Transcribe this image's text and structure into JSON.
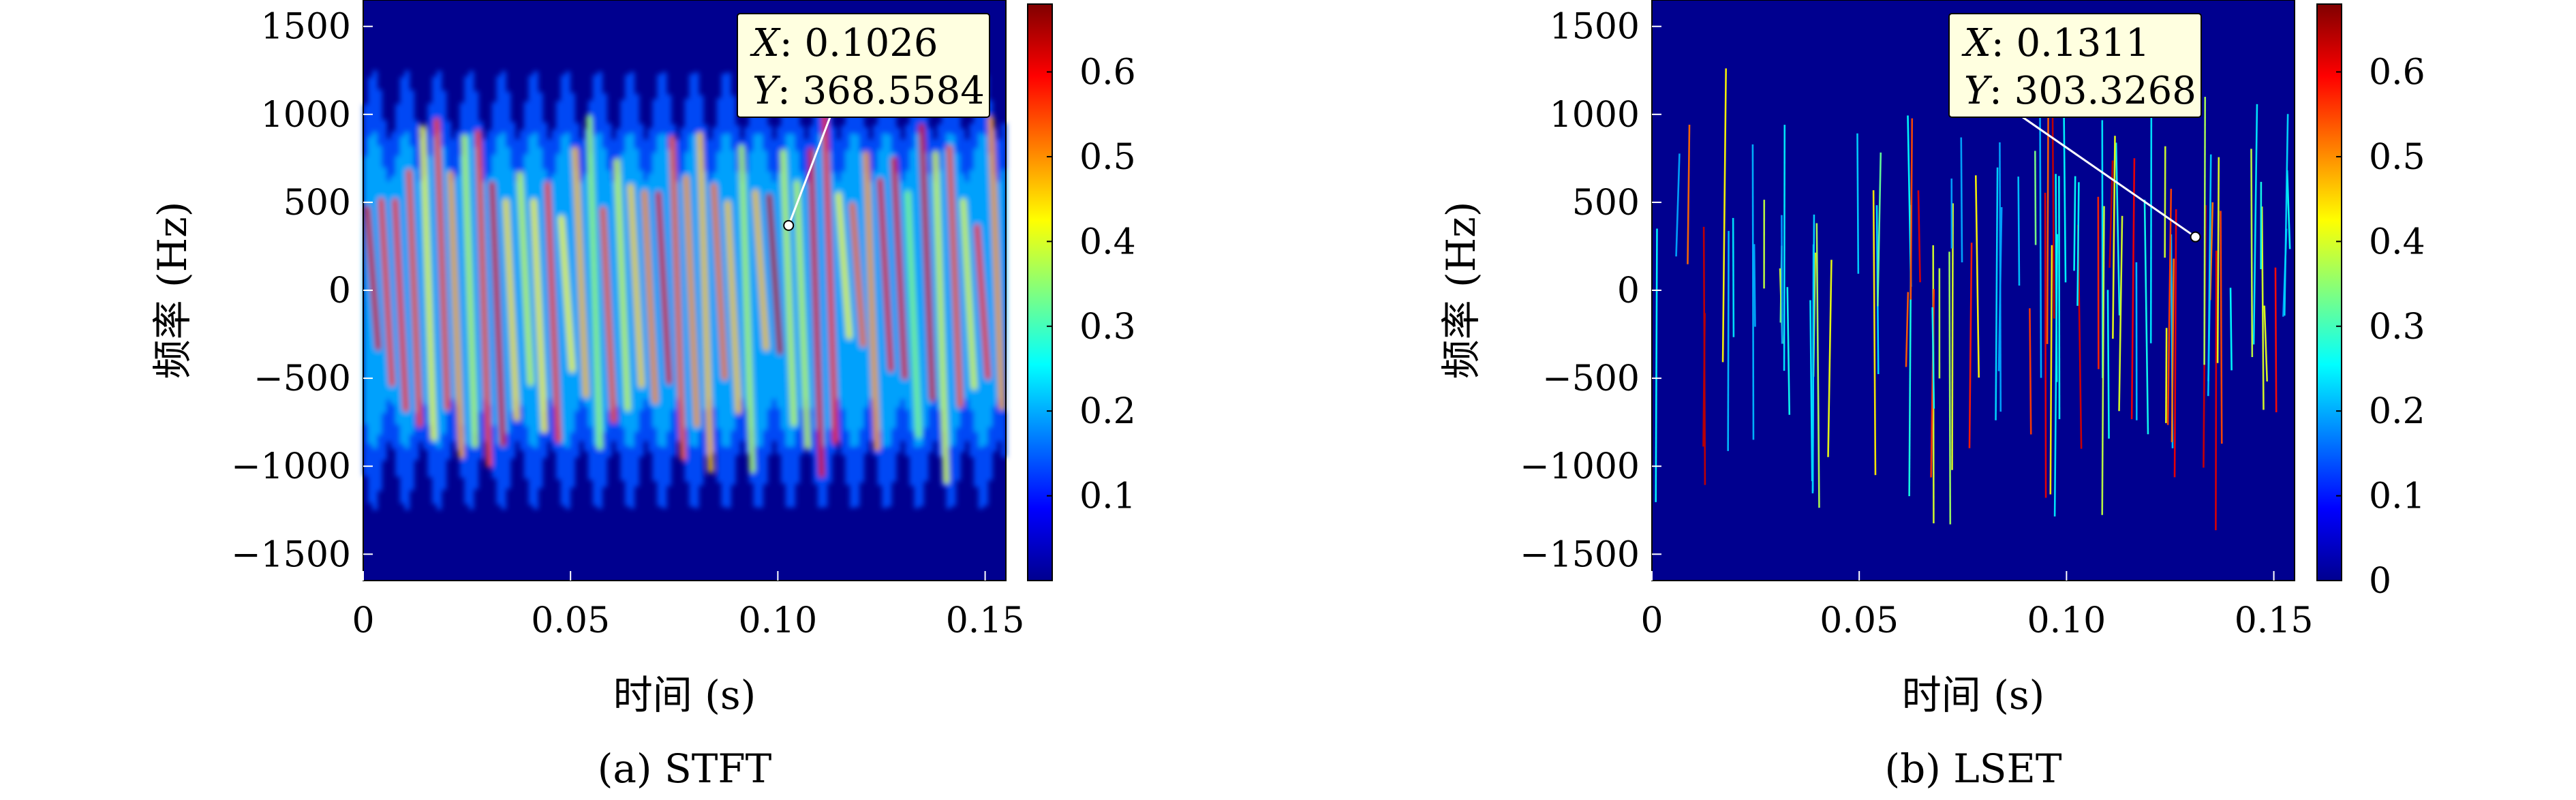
{
  "chart_data": [
    {
      "type": "heatmap",
      "caption": "(a) STFT",
      "xlabel": "时间 (s)",
      "ylabel": "频率 (Hz)",
      "xlim": [
        0,
        0.155
      ],
      "ylim": [
        -1650,
        1650
      ],
      "x_ticks": [
        0,
        0.05,
        0.1,
        0.15
      ],
      "x_tick_labels": [
        "0",
        "0.05",
        "0.10",
        "0.15"
      ],
      "y_ticks": [
        1500,
        1000,
        500,
        0,
        -500,
        -1000,
        -1500
      ],
      "y_tick_labels": [
        "1500",
        "1000",
        "500",
        "0",
        "−500",
        "−1000",
        "−1500"
      ],
      "colorbar": {
        "range": [
          0,
          0.68
        ],
        "ticks": [
          0.1,
          0.2,
          0.3,
          0.4,
          0.5,
          0.6
        ],
        "tick_labels": [
          "0.1",
          "0.2",
          "0.3",
          "0.4",
          "0.5",
          "0.6"
        ],
        "colormap": "jet"
      },
      "pattern": "diffuse",
      "datatip": {
        "x_label": "X",
        "y_label": "Y",
        "x_value": "0.1026",
        "y_value": "368.5584",
        "x": 0.1026,
        "y": 368.5584
      }
    },
    {
      "type": "heatmap",
      "caption": "(b) LSET",
      "xlabel": "时间 (s)",
      "ylabel": "频率 (Hz)",
      "xlim": [
        0,
        0.155
      ],
      "ylim": [
        -1650,
        1650
      ],
      "x_ticks": [
        0,
        0.05,
        0.1,
        0.15
      ],
      "x_tick_labels": [
        "0",
        "0.05",
        "0.10",
        "0.15"
      ],
      "y_ticks": [
        1500,
        1000,
        500,
        0,
        -500,
        -1000,
        -1500
      ],
      "y_tick_labels": [
        "1500",
        "1000",
        "500",
        "0",
        "−500",
        "−1000",
        "−1500"
      ],
      "colorbar": {
        "range": [
          0,
          0.68
        ],
        "ticks": [
          0,
          0.1,
          0.2,
          0.3,
          0.4,
          0.5,
          0.6
        ],
        "tick_labels": [
          "0",
          "0.1",
          "0.2",
          "0.3",
          "0.4",
          "0.5",
          "0.6"
        ],
        "colormap": "jet"
      },
      "pattern": "sharp",
      "datatip": {
        "x_label": "X",
        "y_label": "Y",
        "x_value": "0.1311",
        "y_value": "303.3268",
        "x": 0.1311,
        "y": 303.3268
      }
    }
  ]
}
